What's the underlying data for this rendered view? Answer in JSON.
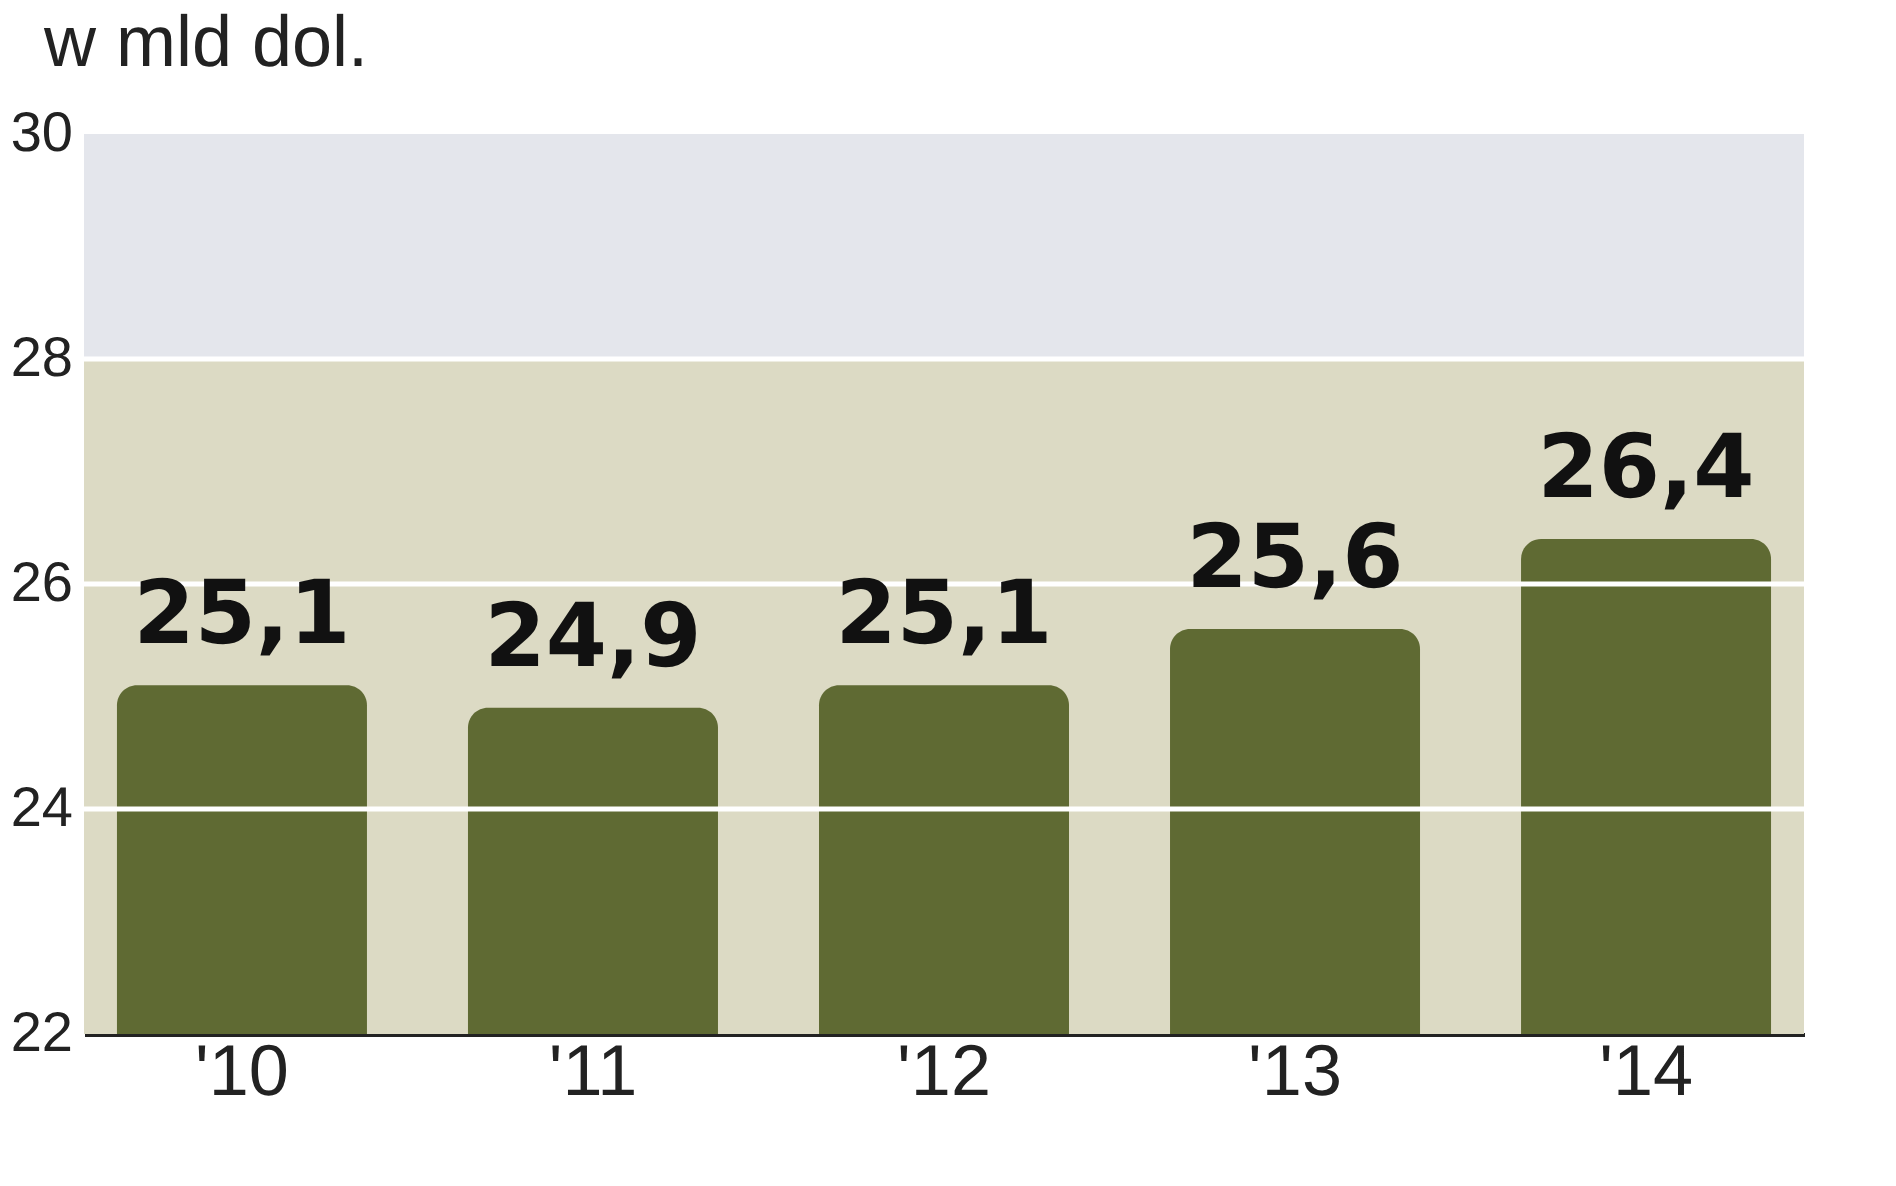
{
  "chart_data": {
    "type": "bar",
    "title": "w mld dol.",
    "categories": [
      "'10",
      "'11",
      "'12",
      "'13",
      "'14"
    ],
    "values": [
      25.1,
      24.9,
      25.1,
      25.6,
      26.4
    ],
    "color": "#5f6a33",
    "value_labels": [
      "25,1",
      "24,9",
      "25,1",
      "25,6",
      "26,4"
    ],
    "ylim": [
      22,
      30
    ],
    "yticks": [
      22,
      24,
      26,
      28,
      30
    ],
    "grid": "y",
    "bands": [
      {
        "axis": "y",
        "from": 28,
        "to": 30,
        "color": "#e4e6ec"
      },
      {
        "axis": "y",
        "from": 22,
        "to": 28,
        "color": "#dcdac4"
      }
    ]
  }
}
